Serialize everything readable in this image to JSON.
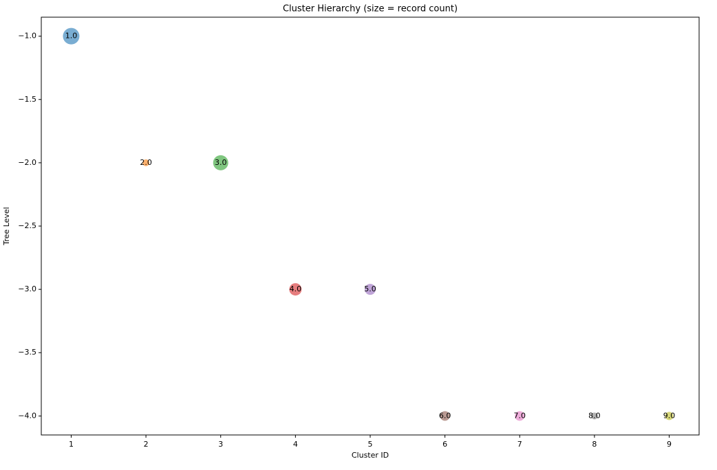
{
  "chart_data": {
    "type": "bubble",
    "title": "Cluster Hierarchy (size = record count)",
    "x_label": "Cluster ID",
    "y_label": "Tree Level",
    "x": [
      1,
      2,
      3,
      4,
      5,
      6,
      7,
      8,
      9
    ],
    "values": [
      -1,
      -2,
      -2,
      -3,
      -3,
      -4,
      -4,
      -4,
      -4
    ],
    "sizes": [
      144,
      25,
      121,
      81,
      64,
      49,
      49,
      25,
      36
    ],
    "labels": [
      "1.0",
      "2.0",
      "3.0",
      "4.0",
      "5.0",
      "6.0",
      "7.0",
      "8.0",
      "9.0"
    ],
    "colors": [
      "#1f77b4",
      "#ff7f0e",
      "#2ca02c",
      "#d62728",
      "#9467bd",
      "#8c564b",
      "#e377c2",
      "#7f7f7f",
      "#bcbd22"
    ],
    "xlim": [
      0.6,
      9.4
    ],
    "ylim": [
      -4.15,
      -0.85
    ],
    "xticks": [
      1,
      2,
      3,
      4,
      5,
      6,
      7,
      8,
      9
    ],
    "yticks": [
      {
        "value": -4,
        "label": "−4.0"
      },
      {
        "value": -3.5,
        "label": "−3.5"
      },
      {
        "value": -3,
        "label": "−3.0"
      },
      {
        "value": -2.5,
        "label": "−2.5"
      },
      {
        "value": -2,
        "label": "−2.0"
      },
      {
        "value": -1.5,
        "label": "−1.5"
      },
      {
        "value": -1,
        "label": "−1.0"
      }
    ],
    "grid": false
  }
}
